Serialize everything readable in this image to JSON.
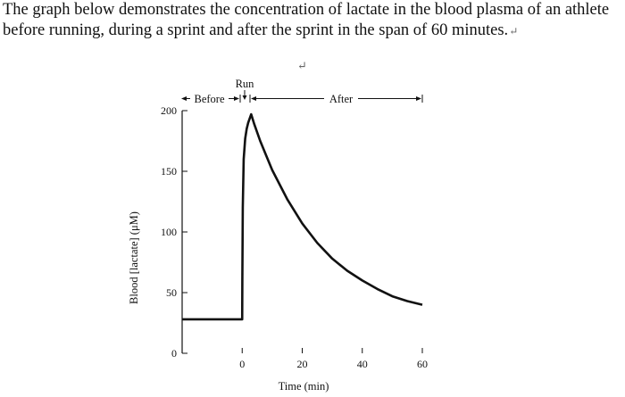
{
  "intro": {
    "text": "The graph below demonstrates the concentration of lactate in the blood plasma of an athlete before running, during a sprint and after the sprint in the span of 60 minutes.",
    "end_mark": "↵"
  },
  "floating_mark": "↵",
  "chart_data": {
    "type": "line",
    "xlabel": "Time (min)",
    "ylabel": "Blood [lactate] (μM)",
    "x_ticks": [
      "0",
      "20",
      "40",
      "60"
    ],
    "y_ticks": [
      "0",
      "50",
      "100",
      "150",
      "200"
    ],
    "xlim": [
      -20,
      60
    ],
    "ylim": [
      0,
      200
    ],
    "annotations": {
      "run": "Run",
      "before": "Before",
      "after": "After"
    },
    "series": [
      {
        "x": [
          -20,
          0,
          0.05,
          0.2,
          0.5,
          1,
          1.5,
          2,
          3,
          4,
          6,
          8,
          10,
          15,
          20,
          25,
          30,
          35,
          40,
          45,
          50,
          55,
          60
        ],
        "y": [
          28,
          28,
          60,
          120,
          160,
          177,
          185,
          190,
          197,
          189,
          175,
          163,
          151,
          127,
          107,
          91,
          78,
          68,
          60,
          53,
          47,
          43,
          40
        ]
      }
    ]
  }
}
